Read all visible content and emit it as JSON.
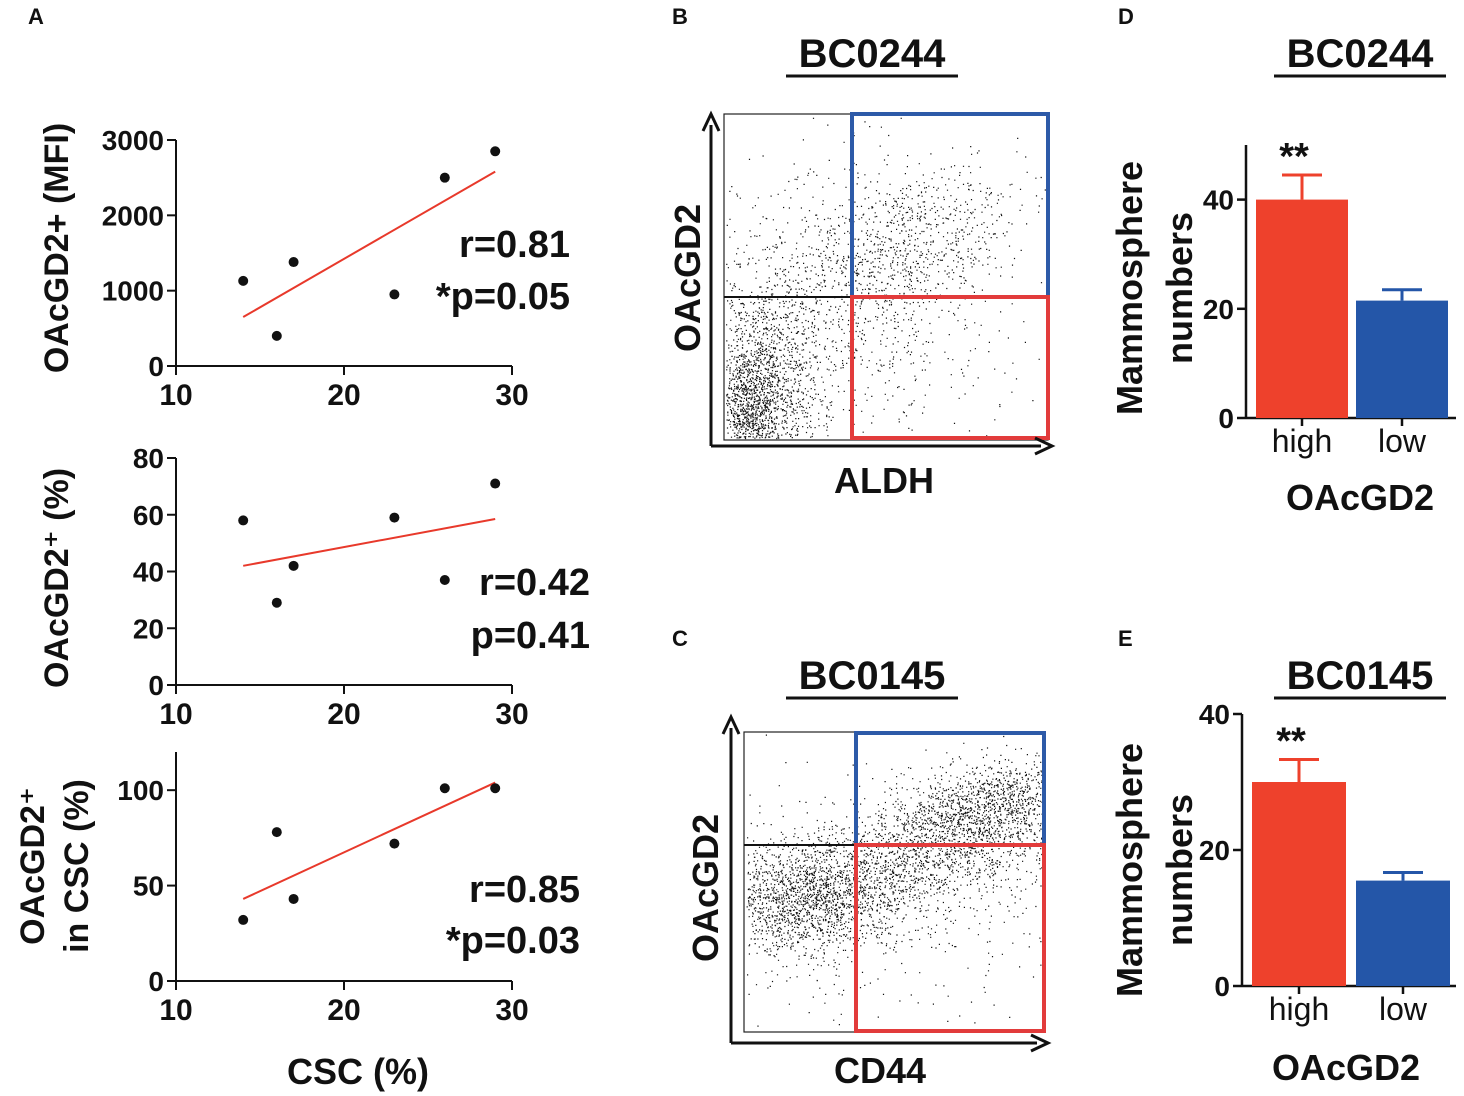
{
  "panels": {
    "A": {
      "label": "A",
      "shared_xlabel": "CSC (%)",
      "plots": [
        {
          "type": "scatter",
          "ylabel": "OAcGD2+ (MFI)",
          "ylabel_lines": [
            "OAcGD2+ (MFI)"
          ],
          "xlim": [
            10,
            30
          ],
          "ylim": [
            0,
            3000
          ],
          "xticks": [
            10,
            20,
            30
          ],
          "yticks": [
            0,
            1000,
            2000,
            3000
          ],
          "points": [
            [
              14,
              1130
            ],
            [
              16,
              400
            ],
            [
              17,
              1380
            ],
            [
              23,
              950
            ],
            [
              26,
              2500
            ],
            [
              29,
              2850
            ]
          ],
          "fit": [
            [
              14,
              650
            ],
            [
              29,
              2580
            ]
          ],
          "stats": [
            "r=0.81",
            "*p=0.05"
          ]
        },
        {
          "type": "scatter",
          "ylabel": "OAcGD2⁺ (%)",
          "ylabel_lines": [
            "OAcGD2⁺ (%)"
          ],
          "xlim": [
            10,
            30
          ],
          "ylim": [
            0,
            80
          ],
          "xticks": [
            10,
            20,
            30
          ],
          "yticks": [
            0,
            20,
            40,
            60,
            80
          ],
          "points": [
            [
              14,
              58
            ],
            [
              16,
              29
            ],
            [
              17,
              42
            ],
            [
              23,
              59
            ],
            [
              26,
              37
            ],
            [
              29,
              71
            ]
          ],
          "fit": [
            [
              14,
              42
            ],
            [
              29,
              58.5
            ]
          ],
          "stats": [
            "r=0.42",
            "p=0.41"
          ]
        },
        {
          "type": "scatter",
          "ylabel": "OAcGD2⁺ in CSC (%)",
          "ylabel_lines": [
            "OAcGD2⁺",
            "in CSC (%)"
          ],
          "xlim": [
            10,
            30
          ],
          "ylim": [
            0,
            120
          ],
          "xticks": [
            10,
            20,
            30
          ],
          "yticks": [
            0,
            50,
            100
          ],
          "points": [
            [
              14,
              32
            ],
            [
              16,
              78
            ],
            [
              17,
              43
            ],
            [
              23,
              72
            ],
            [
              26,
              101
            ],
            [
              29,
              101
            ]
          ],
          "fit": [
            [
              14,
              43
            ],
            [
              29,
              104
            ]
          ],
          "stats": [
            "r=0.85",
            "*p=0.03"
          ]
        }
      ]
    },
    "B": {
      "label": "B",
      "title": "BC0244",
      "ylabel": "OAcGD2",
      "xlabel": "ALDH"
    },
    "C": {
      "label": "C",
      "title": "BC0145",
      "ylabel": "OAcGD2",
      "xlabel": "CD44"
    },
    "D": {
      "label": "D",
      "title": "BC0244",
      "ylabel": [
        "Mammosphere",
        "numbers"
      ],
      "xlabel": "OAcGD2"
    },
    "E": {
      "label": "E",
      "title": "BC0145",
      "ylabel": [
        "Mammosphere",
        "numbers"
      ],
      "xlabel": "OAcGD2"
    }
  },
  "colors": {
    "fit": "#e8392b",
    "high": "#ee412c",
    "low": "#2456a8",
    "upper_gate": "#2d5aa8",
    "lower_gate": "#e23b3b"
  },
  "chart_data": [
    {
      "type": "scatter",
      "panel": "A1",
      "xlabel": "CSC (%)",
      "ylabel": "OAcGD2+ (MFI)",
      "xlim": [
        10,
        30
      ],
      "ylim": [
        0,
        3000
      ],
      "x": [
        14,
        16,
        17,
        23,
        26,
        29
      ],
      "y": [
        1130,
        400,
        1380,
        950,
        2500,
        2850
      ],
      "annotations": [
        "r=0.81",
        "*p=0.05"
      ]
    },
    {
      "type": "scatter",
      "panel": "A2",
      "xlabel": "CSC (%)",
      "ylabel": "OAcGD2⁺ (%)",
      "xlim": [
        10,
        30
      ],
      "ylim": [
        0,
        80
      ],
      "x": [
        14,
        16,
        17,
        23,
        26,
        29
      ],
      "y": [
        58,
        29,
        42,
        59,
        37,
        71
      ],
      "annotations": [
        "r=0.42",
        "p=0.41"
      ]
    },
    {
      "type": "scatter",
      "panel": "A3",
      "xlabel": "CSC (%)",
      "ylabel": "OAcGD2⁺ in CSC (%)",
      "xlim": [
        10,
        30
      ],
      "ylim": [
        0,
        120
      ],
      "x": [
        14,
        16,
        17,
        23,
        26,
        29
      ],
      "y": [
        32,
        78,
        43,
        72,
        101,
        101
      ],
      "annotations": [
        "r=0.85",
        "*p=0.03"
      ]
    },
    {
      "type": "bar",
      "panel": "D",
      "title": "BC0244",
      "categories": [
        "high",
        "low"
      ],
      "values": [
        40,
        21.5
      ],
      "errors": [
        4.5,
        2
      ],
      "xlabel": "OAcGD2",
      "ylabel": "Mammosphere numbers",
      "ylim": [
        0,
        50
      ],
      "yticks": [
        0,
        20,
        40
      ],
      "significance": "**"
    },
    {
      "type": "bar",
      "panel": "E",
      "title": "BC0145",
      "categories": [
        "high",
        "low"
      ],
      "values": [
        30,
        15.5
      ],
      "errors": [
        3.3,
        1.2
      ],
      "xlabel": "OAcGD2",
      "ylabel": "Mammosphere numbers",
      "ylim": [
        0,
        40
      ],
      "yticks": [
        0,
        20,
        40
      ],
      "significance": "**"
    }
  ]
}
